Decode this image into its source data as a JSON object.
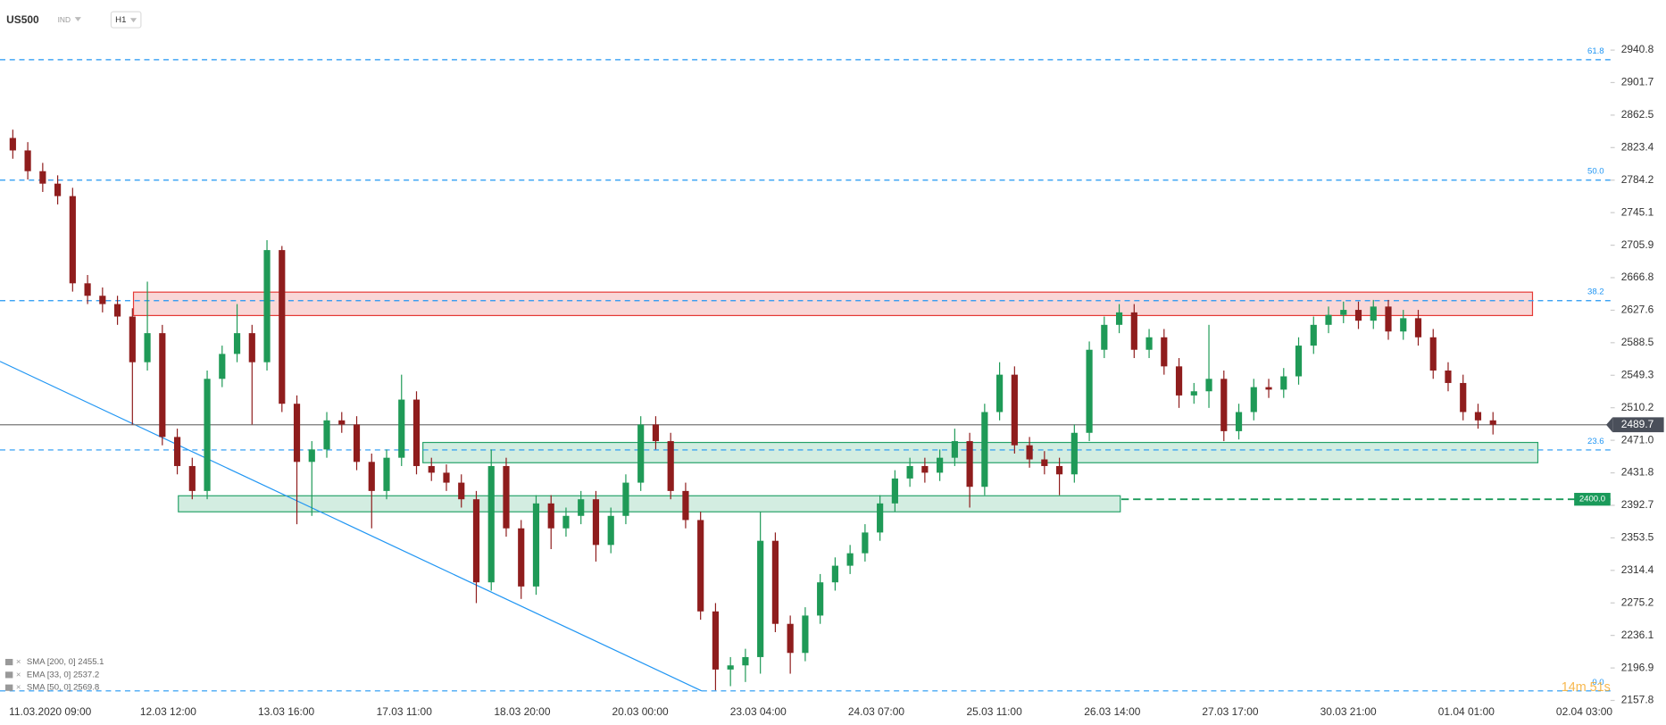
{
  "chart_data": {
    "type": "candlestick",
    "symbol": "US500",
    "instrument_type": "IND",
    "timeframe": "H1",
    "ylim": [
      2153.9,
      3001.1
    ],
    "yticks": [
      2940.8,
      2901.7,
      2862.5,
      2823.4,
      2784.2,
      2745.1,
      2705.9,
      2666.8,
      2627.6,
      2588.5,
      2549.3,
      2510.2,
      {
        "value": 2471,
        "label": "2471.0"
      },
      2431.8,
      2392.7,
      2353.5,
      2314.4,
      2275.2,
      2236.1,
      2196.9,
      2157.8
    ],
    "x_labels": [
      "11.03.2020  09:00",
      "12.03  12:00",
      "13.03  16:00",
      "17.03  11:00",
      "18.03  20:00",
      "20.03  00:00",
      "23.03  04:00",
      "24.03  07:00",
      "25.03  11:00",
      "26.03  14:00",
      "27.03  17:00",
      "30.03  21:00",
      "01.04  01:00",
      "02.04  03:00"
    ],
    "up_color": "#1f9a57",
    "down_color": "#8f1d1d",
    "open": [
      2835,
      2820,
      2795,
      2780,
      2765,
      2660,
      2645,
      2635,
      2620,
      2565,
      2600,
      2475,
      2440,
      2410,
      2545,
      2575,
      2600,
      2565,
      2700,
      2515,
      2445,
      2460,
      2495,
      2490,
      2445,
      2410,
      2450,
      2520,
      2440,
      2432,
      2420,
      2400,
      2300,
      2440,
      2365,
      2295,
      2395,
      2365,
      2380,
      2400,
      2345,
      2380,
      2420,
      2490,
      2470,
      2410,
      2375,
      2265,
      2195,
      2200,
      2210,
      2350,
      2250,
      2215,
      2260,
      2300,
      2320,
      2335,
      2360,
      2395,
      2425,
      2440,
      2432,
      2450,
      2470,
      2415,
      2505,
      2550,
      2465,
      2448,
      2440,
      2430,
      2480,
      2580,
      2610,
      2625,
      2580,
      2595,
      2560,
      2525,
      2530,
      2545,
      2482,
      2505,
      2535,
      2532,
      2548,
      2585,
      2610,
      2622,
      2628,
      2615,
      2632,
      2602,
      2618,
      2595,
      2555,
      2540,
      2505,
      2495
    ],
    "high": [
      2845,
      2830,
      2805,
      2790,
      2775,
      2670,
      2655,
      2645,
      2630,
      2662,
      2610,
      2485,
      2450,
      2555,
      2585,
      2635,
      2610,
      2712,
      2705,
      2525,
      2470,
      2505,
      2505,
      2500,
      2455,
      2460,
      2550,
      2530,
      2450,
      2442,
      2430,
      2410,
      2460,
      2450,
      2375,
      2405,
      2405,
      2390,
      2410,
      2410,
      2390,
      2430,
      2500,
      2500,
      2480,
      2420,
      2385,
      2275,
      2210,
      2220,
      2385,
      2360,
      2260,
      2270,
      2310,
      2330,
      2345,
      2370,
      2405,
      2435,
      2450,
      2450,
      2460,
      2485,
      2480,
      2515,
      2565,
      2560,
      2475,
      2458,
      2450,
      2490,
      2590,
      2620,
      2635,
      2635,
      2605,
      2605,
      2570,
      2540,
      2610,
      2555,
      2515,
      2545,
      2545,
      2558,
      2595,
      2620,
      2632,
      2638,
      2638,
      2640,
      2640,
      2628,
      2628,
      2605,
      2565,
      2550,
      2515,
      2505
    ],
    "low": [
      2810,
      2785,
      2770,
      2755,
      2650,
      2635,
      2625,
      2610,
      2490,
      2555,
      2465,
      2430,
      2400,
      2400,
      2535,
      2565,
      2490,
      2555,
      2505,
      2370,
      2380,
      2450,
      2480,
      2435,
      2365,
      2400,
      2440,
      2430,
      2422,
      2410,
      2390,
      2275,
      2290,
      2355,
      2280,
      2285,
      2340,
      2355,
      2370,
      2325,
      2335,
      2370,
      2410,
      2460,
      2400,
      2365,
      2255,
      2170,
      2175,
      2180,
      2190,
      2240,
      2190,
      2205,
      2250,
      2290,
      2310,
      2325,
      2350,
      2385,
      2415,
      2420,
      2422,
      2440,
      2390,
      2405,
      2495,
      2455,
      2438,
      2430,
      2405,
      2420,
      2470,
      2570,
      2600,
      2570,
      2570,
      2550,
      2510,
      2515,
      2510,
      2470,
      2472,
      2495,
      2522,
      2522,
      2538,
      2575,
      2600,
      2612,
      2605,
      2605,
      2592,
      2592,
      2585,
      2545,
      2530,
      2495,
      2485,
      2478
    ],
    "close": [
      2820,
      2795,
      2780,
      2765,
      2660,
      2645,
      2635,
      2620,
      2565,
      2600,
      2475,
      2440,
      2410,
      2545,
      2575,
      2600,
      2565,
      2700,
      2515,
      2445,
      2460,
      2495,
      2490,
      2445,
      2410,
      2450,
      2520,
      2440,
      2432,
      2420,
      2400,
      2300,
      2440,
      2365,
      2295,
      2395,
      2365,
      2380,
      2400,
      2345,
      2380,
      2420,
      2490,
      2470,
      2410,
      2375,
      2265,
      2195,
      2200,
      2210,
      2350,
      2250,
      2215,
      2260,
      2300,
      2320,
      2335,
      2360,
      2395,
      2425,
      2440,
      2432,
      2450,
      2470,
      2415,
      2505,
      2550,
      2465,
      2448,
      2440,
      2430,
      2480,
      2580,
      2610,
      2625,
      2580,
      2595,
      2560,
      2525,
      2530,
      2545,
      2482,
      2505,
      2535,
      2532,
      2548,
      2585,
      2610,
      2622,
      2628,
      2615,
      2632,
      2602,
      2618,
      2595,
      2555,
      2540,
      2505,
      2495,
      2489.7
    ],
    "last_price": {
      "value": 2489.7,
      "label": "2489.7"
    },
    "support_line": {
      "value": 2400,
      "label": "2400.0"
    },
    "fib_levels": [
      {
        "label": "61.8",
        "price": 2929.2
      },
      {
        "label": "50.0",
        "price": 2784.2
      },
      {
        "label": "38.2",
        "price": 2639.1
      },
      {
        "label": "23.6",
        "price": 2459.4
      },
      {
        "label": "0.0",
        "price": 2169.3
      }
    ],
    "resistance_zone": [
      2649.4,
      2621.2
    ],
    "support_zones": [
      [
        2468.4,
        2444.0
      ],
      [
        2404.2,
        2384.9
      ]
    ],
    "trend_line": [
      2566.0,
      2169.3
    ],
    "indicators": [
      "SMA [200, 0] 2455.1",
      "EMA [33, 0] 2537.2",
      "SMA [50, 0] 2569.8"
    ],
    "timer": "14m 51s"
  }
}
